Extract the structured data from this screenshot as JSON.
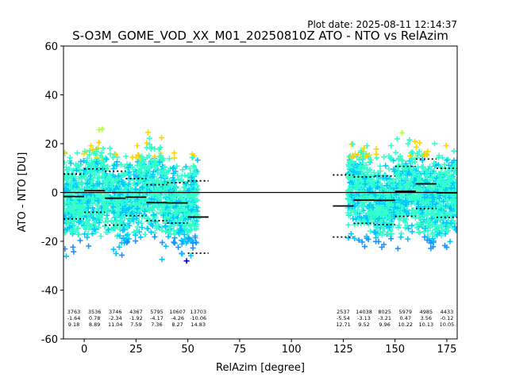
{
  "chart_data": {
    "type": "scatter",
    "plot_date": "Plot date: 2025-08-11 12:14:37",
    "title": "S-O3M_GOME_VOD_XX_M01_20250810Z ATO - NTO vs RelAzim",
    "xlabel": "RelAzim [degree]",
    "ylabel": "ATO - NTO [DU]",
    "xlim": [
      -10,
      180
    ],
    "ylim": [
      -60,
      60
    ],
    "xticks": [
      0,
      25,
      50,
      75,
      100,
      125,
      150,
      175
    ],
    "yticks": [
      -60,
      -40,
      -20,
      0,
      20,
      40,
      60
    ],
    "grid": false,
    "zero_line": 0,
    "bins": [
      {
        "x0": -10,
        "x1": 0,
        "count": "3763",
        "mean": "-1.64",
        "std": "9.18"
      },
      {
        "x0": 0,
        "x1": 10,
        "count": "3536",
        "mean": "0.78",
        "std": "8.89"
      },
      {
        "x0": 10,
        "x1": 20,
        "count": "3746",
        "mean": "-2.34",
        "std": "11.04"
      },
      {
        "x0": 20,
        "x1": 30,
        "count": "4367",
        "mean": "-1.92",
        "std": "7.59"
      },
      {
        "x0": 30,
        "x1": 40,
        "count": "5795",
        "mean": "-4.17",
        "std": "7.36"
      },
      {
        "x0": 40,
        "x1": 50,
        "count": "10607",
        "mean": "-4.26",
        "std": "8.27"
      },
      {
        "x0": 50,
        "x1": 60,
        "count": "13703",
        "mean": "-10.06",
        "std": "14.83"
      },
      {
        "x0": 120,
        "x1": 130,
        "count": "2537",
        "mean": "-5.54",
        "std": "12.71"
      },
      {
        "x0": 130,
        "x1": 140,
        "count": "14038",
        "mean": "-3.13",
        "std": "9.52"
      },
      {
        "x0": 140,
        "x1": 150,
        "count": "8025",
        "mean": "-3.21",
        "std": "9.96"
      },
      {
        "x0": 150,
        "x1": 160,
        "count": "5979",
        "mean": "0.47",
        "std": "10.22"
      },
      {
        "x0": 160,
        "x1": 170,
        "count": "4985",
        "mean": "3.56",
        "std": "10.13"
      },
      {
        "x0": 170,
        "x1": 180,
        "count": "4433",
        "mean": "-0.12",
        "std": "10.05"
      }
    ],
    "point_colors": [
      "#0000cd",
      "#1e90ff",
      "#00c8ff",
      "#33ffcc",
      "#4cffb0",
      "#b0ff40",
      "#ffd400",
      "#ffa500"
    ],
    "marker": "plus"
  }
}
